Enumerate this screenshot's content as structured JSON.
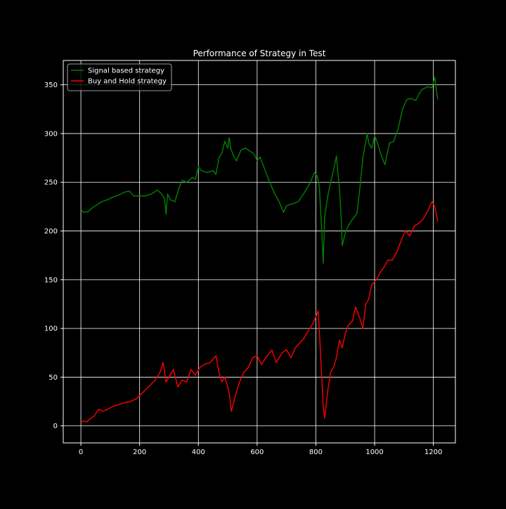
{
  "chart_data": {
    "type": "line",
    "title": "Performance of Strategy in Test",
    "xlabel": "",
    "ylabel": "",
    "xlim": [
      -60,
      1275
    ],
    "ylim": [
      -17.5,
      375
    ],
    "xticks": [
      0,
      200,
      400,
      600,
      800,
      1000,
      1200
    ],
    "yticks": [
      0,
      50,
      100,
      150,
      200,
      250,
      300,
      350
    ],
    "grid": true,
    "legend": "top-left",
    "colors": {
      "background": "#000000",
      "axes": "#ffffff",
      "grid": "#ffffff",
      "text": "#ffffff"
    },
    "series": [
      {
        "name": "Signal based strategy",
        "color": "#008000",
        "points": [
          [
            0,
            222
          ],
          [
            10,
            219
          ],
          [
            25,
            220
          ],
          [
            40,
            224
          ],
          [
            55,
            227
          ],
          [
            70,
            230
          ],
          [
            90,
            232
          ],
          [
            110,
            235
          ],
          [
            130,
            237
          ],
          [
            150,
            240
          ],
          [
            165,
            241
          ],
          [
            180,
            236
          ],
          [
            200,
            236
          ],
          [
            220,
            236
          ],
          [
            240,
            238
          ],
          [
            260,
            242
          ],
          [
            275,
            238
          ],
          [
            285,
            233
          ],
          [
            290,
            217
          ],
          [
            295,
            238
          ],
          [
            305,
            232
          ],
          [
            320,
            230
          ],
          [
            335,
            245
          ],
          [
            345,
            252
          ],
          [
            360,
            250
          ],
          [
            380,
            255
          ],
          [
            390,
            253
          ],
          [
            400,
            266
          ],
          [
            410,
            262
          ],
          [
            430,
            260
          ],
          [
            450,
            262
          ],
          [
            460,
            258
          ],
          [
            470,
            275
          ],
          [
            480,
            280
          ],
          [
            490,
            292
          ],
          [
            500,
            285
          ],
          [
            505,
            296
          ],
          [
            510,
            285
          ],
          [
            520,
            277
          ],
          [
            530,
            272
          ],
          [
            545,
            283
          ],
          [
            560,
            285
          ],
          [
            575,
            282
          ],
          [
            590,
            279
          ],
          [
            600,
            272
          ],
          [
            610,
            276
          ],
          [
            620,
            268
          ],
          [
            640,
            252
          ],
          [
            660,
            238
          ],
          [
            675,
            230
          ],
          [
            690,
            219
          ],
          [
            700,
            226
          ],
          [
            720,
            228
          ],
          [
            740,
            230
          ],
          [
            760,
            239
          ],
          [
            780,
            249
          ],
          [
            795,
            260
          ],
          [
            805,
            256
          ],
          [
            812,
            245
          ],
          [
            820,
            200
          ],
          [
            825,
            167
          ],
          [
            830,
            215
          ],
          [
            840,
            235
          ],
          [
            850,
            250
          ],
          [
            860,
            262
          ],
          [
            870,
            277
          ],
          [
            875,
            260
          ],
          [
            880,
            245
          ],
          [
            885,
            220
          ],
          [
            890,
            185
          ],
          [
            900,
            198
          ],
          [
            910,
            205
          ],
          [
            920,
            210
          ],
          [
            930,
            214
          ],
          [
            940,
            218
          ],
          [
            950,
            245
          ],
          [
            960,
            275
          ],
          [
            975,
            300
          ],
          [
            980,
            290
          ],
          [
            990,
            285
          ],
          [
            1000,
            298
          ],
          [
            1010,
            290
          ],
          [
            1020,
            280
          ],
          [
            1035,
            268
          ],
          [
            1050,
            290
          ],
          [
            1065,
            292
          ],
          [
            1080,
            305
          ],
          [
            1095,
            325
          ],
          [
            1110,
            335
          ],
          [
            1125,
            336
          ],
          [
            1140,
            334
          ],
          [
            1160,
            345
          ],
          [
            1180,
            348
          ],
          [
            1195,
            347
          ],
          [
            1205,
            358
          ],
          [
            1210,
            345
          ],
          [
            1215,
            335
          ]
        ]
      },
      {
        "name": "Buy and Hold strategy",
        "color": "#ff0000",
        "points": [
          [
            0,
            4
          ],
          [
            10,
            5
          ],
          [
            20,
            4
          ],
          [
            30,
            7
          ],
          [
            45,
            10
          ],
          [
            60,
            17
          ],
          [
            75,
            15
          ],
          [
            90,
            17
          ],
          [
            110,
            20
          ],
          [
            130,
            22
          ],
          [
            150,
            24
          ],
          [
            170,
            25
          ],
          [
            190,
            28
          ],
          [
            210,
            34
          ],
          [
            230,
            40
          ],
          [
            250,
            46
          ],
          [
            270,
            55
          ],
          [
            280,
            65
          ],
          [
            290,
            45
          ],
          [
            300,
            50
          ],
          [
            315,
            58
          ],
          [
            330,
            40
          ],
          [
            345,
            47
          ],
          [
            360,
            45
          ],
          [
            375,
            58
          ],
          [
            390,
            52
          ],
          [
            405,
            60
          ],
          [
            420,
            63
          ],
          [
            440,
            65
          ],
          [
            460,
            72
          ],
          [
            470,
            55
          ],
          [
            480,
            45
          ],
          [
            490,
            50
          ],
          [
            500,
            40
          ],
          [
            507,
            30
          ],
          [
            512,
            15
          ],
          [
            525,
            30
          ],
          [
            540,
            45
          ],
          [
            555,
            55
          ],
          [
            570,
            60
          ],
          [
            585,
            70
          ],
          [
            600,
            72
          ],
          [
            615,
            63
          ],
          [
            630,
            70
          ],
          [
            650,
            78
          ],
          [
            665,
            65
          ],
          [
            685,
            75
          ],
          [
            700,
            78
          ],
          [
            715,
            70
          ],
          [
            730,
            80
          ],
          [
            745,
            85
          ],
          [
            760,
            90
          ],
          [
            775,
            98
          ],
          [
            790,
            105
          ],
          [
            800,
            112
          ],
          [
            808,
            118
          ],
          [
            815,
            80
          ],
          [
            820,
            50
          ],
          [
            825,
            20
          ],
          [
            830,
            8
          ],
          [
            840,
            35
          ],
          [
            850,
            55
          ],
          [
            860,
            60
          ],
          [
            870,
            70
          ],
          [
            880,
            88
          ],
          [
            890,
            80
          ],
          [
            900,
            95
          ],
          [
            910,
            103
          ],
          [
            925,
            108
          ],
          [
            935,
            122
          ],
          [
            950,
            110
          ],
          [
            960,
            100
          ],
          [
            970,
            125
          ],
          [
            980,
            130
          ],
          [
            990,
            145
          ],
          [
            1000,
            148
          ],
          [
            1010,
            152
          ],
          [
            1020,
            158
          ],
          [
            1030,
            162
          ],
          [
            1045,
            170
          ],
          [
            1060,
            170
          ],
          [
            1075,
            178
          ],
          [
            1090,
            190
          ],
          [
            1105,
            200
          ],
          [
            1120,
            195
          ],
          [
            1135,
            205
          ],
          [
            1150,
            208
          ],
          [
            1165,
            212
          ],
          [
            1180,
            220
          ],
          [
            1195,
            230
          ],
          [
            1205,
            225
          ],
          [
            1210,
            217
          ],
          [
            1215,
            210
          ]
        ]
      }
    ]
  }
}
